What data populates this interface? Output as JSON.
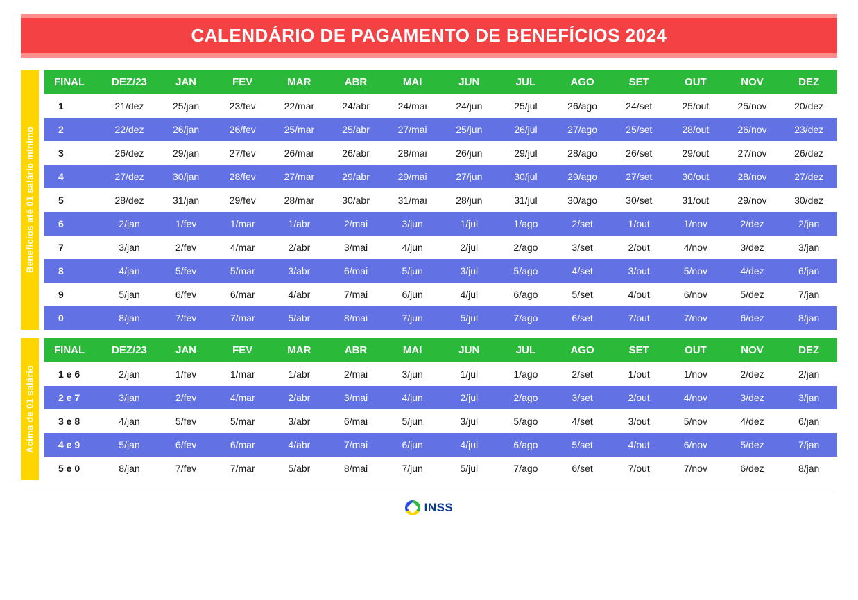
{
  "title": "CALENDÁRIO DE PAGAMENTO DE BENEFÍCIOS 2024",
  "colors": {
    "title_bg": "#f44144",
    "title_outer": "#fd8e8e",
    "side_bg": "#ffd500",
    "header_bg": "#2ab939",
    "row_even_bg": "#6272e5",
    "row_odd_bg": "#ffffff"
  },
  "columns": [
    "FINAL",
    "DEZ/23",
    "JAN",
    "FEV",
    "MAR",
    "ABR",
    "MAI",
    "JUN",
    "JUL",
    "AGO",
    "SET",
    "OUT",
    "NOV",
    "DEZ"
  ],
  "section1": {
    "label": "Benefícios até 01 salário mínimo",
    "rows": [
      [
        "1",
        "21/dez",
        "25/jan",
        "23/fev",
        "22/mar",
        "24/abr",
        "24/mai",
        "24/jun",
        "25/jul",
        "26/ago",
        "24/set",
        "25/out",
        "25/nov",
        "20/dez"
      ],
      [
        "2",
        "22/dez",
        "26/jan",
        "26/fev",
        "25/mar",
        "25/abr",
        "27/mai",
        "25/jun",
        "26/jul",
        "27/ago",
        "25/set",
        "28/out",
        "26/nov",
        "23/dez"
      ],
      [
        "3",
        "26/dez",
        "29/jan",
        "27/fev",
        "26/mar",
        "26/abr",
        "28/mai",
        "26/jun",
        "29/jul",
        "28/ago",
        "26/set",
        "29/out",
        "27/nov",
        "26/dez"
      ],
      [
        "4",
        "27/dez",
        "30/jan",
        "28/fev",
        "27/mar",
        "29/abr",
        "29/mai",
        "27/jun",
        "30/jul",
        "29/ago",
        "27/set",
        "30/out",
        "28/nov",
        "27/dez"
      ],
      [
        "5",
        "28/dez",
        "31/jan",
        "29/fev",
        "28/mar",
        "30/abr",
        "31/mai",
        "28/jun",
        "31/jul",
        "30/ago",
        "30/set",
        "31/out",
        "29/nov",
        "30/dez"
      ],
      [
        "6",
        "2/jan",
        "1/fev",
        "1/mar",
        "1/abr",
        "2/mai",
        "3/jun",
        "1/jul",
        "1/ago",
        "2/set",
        "1/out",
        "1/nov",
        "2/dez",
        "2/jan"
      ],
      [
        "7",
        "3/jan",
        "2/fev",
        "4/mar",
        "2/abr",
        "3/mai",
        "4/jun",
        "2/jul",
        "2/ago",
        "3/set",
        "2/out",
        "4/nov",
        "3/dez",
        "3/jan"
      ],
      [
        "8",
        "4/jan",
        "5/fev",
        "5/mar",
        "3/abr",
        "6/mai",
        "5/jun",
        "3/jul",
        "5/ago",
        "4/set",
        "3/out",
        "5/nov",
        "4/dez",
        "6/jan"
      ],
      [
        "9",
        "5/jan",
        "6/fev",
        "6/mar",
        "4/abr",
        "7/mai",
        "6/jun",
        "4/jul",
        "6/ago",
        "5/set",
        "4/out",
        "6/nov",
        "5/dez",
        "7/jan"
      ],
      [
        "0",
        "8/jan",
        "7/fev",
        "7/mar",
        "5/abr",
        "8/mai",
        "7/jun",
        "5/jul",
        "7/ago",
        "6/set",
        "7/out",
        "7/nov",
        "6/dez",
        "8/jan"
      ]
    ]
  },
  "section2": {
    "label": "Acima de 01 salário",
    "rows": [
      [
        "1 e 6",
        "2/jan",
        "1/fev",
        "1/mar",
        "1/abr",
        "2/mai",
        "3/jun",
        "1/jul",
        "1/ago",
        "2/set",
        "1/out",
        "1/nov",
        "2/dez",
        "2/jan"
      ],
      [
        "2 e 7",
        "3/jan",
        "2/fev",
        "4/mar",
        "2/abr",
        "3/mai",
        "4/jun",
        "2/jul",
        "2/ago",
        "3/set",
        "2/out",
        "4/nov",
        "3/dez",
        "3/jan"
      ],
      [
        "3 e 8",
        "4/jan",
        "5/fev",
        "5/mar",
        "3/abr",
        "6/mai",
        "5/jun",
        "3/jul",
        "5/ago",
        "4/set",
        "3/out",
        "5/nov",
        "4/dez",
        "6/jan"
      ],
      [
        "4 e 9",
        "5/jan",
        "6/fev",
        "6/mar",
        "4/abr",
        "7/mai",
        "6/jun",
        "4/jul",
        "6/ago",
        "5/set",
        "4/out",
        "6/nov",
        "5/dez",
        "7/jan"
      ],
      [
        "5 e 0",
        "8/jan",
        "7/fev",
        "7/mar",
        "5/abr",
        "8/mai",
        "7/jun",
        "5/jul",
        "7/ago",
        "6/set",
        "7/out",
        "7/nov",
        "6/dez",
        "8/jan"
      ]
    ]
  },
  "footer_label": "INSS"
}
